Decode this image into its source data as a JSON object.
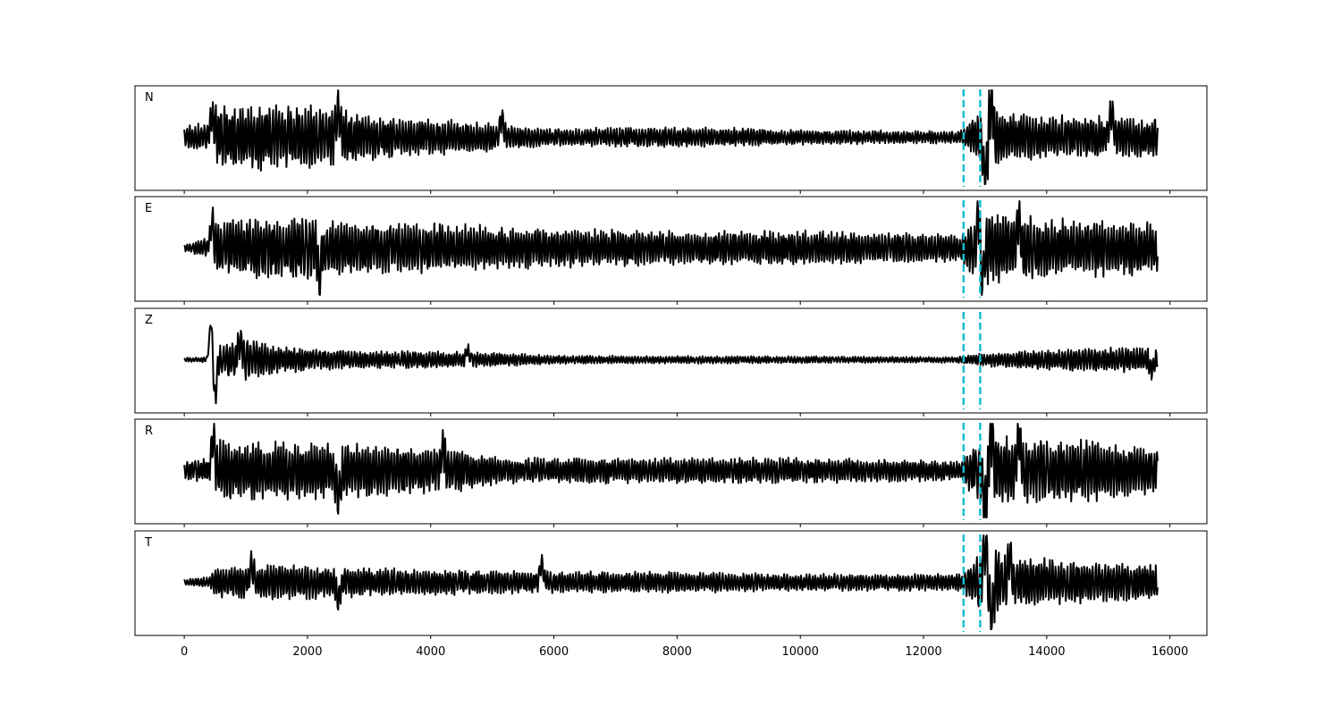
{
  "chart_data": {
    "type": "line",
    "title": "",
    "xlabel": "",
    "ylabel": "",
    "xlim": [
      -800,
      16600
    ],
    "x_ticks": [
      0,
      2000,
      4000,
      6000,
      8000,
      10000,
      12000,
      14000,
      16000
    ],
    "x_tick_labels": [
      "0",
      "2000",
      "4000",
      "6000",
      "8000",
      "10000",
      "12000",
      "14000",
      "16000"
    ],
    "trace_x_range": [
      0,
      15800
    ],
    "y_axis_visible": false,
    "grid": false,
    "colors": {
      "trace": "#000000",
      "pick": "#17becf"
    },
    "pick_markers": [
      12650,
      12920
    ],
    "panels": [
      {
        "label": "N",
        "envelope": [
          [
            0,
            0.25
          ],
          [
            400,
            0.35
          ],
          [
            500,
            0.7
          ],
          [
            1500,
            0.8
          ],
          [
            2500,
            0.65
          ],
          [
            3500,
            0.45
          ],
          [
            5000,
            0.35
          ],
          [
            6000,
            0.2
          ],
          [
            8000,
            0.25
          ],
          [
            10000,
            0.18
          ],
          [
            12000,
            0.15
          ],
          [
            12600,
            0.15
          ],
          [
            12900,
            0.6
          ],
          [
            13050,
            1.0
          ],
          [
            13300,
            0.55
          ],
          [
            14500,
            0.5
          ],
          [
            15800,
            0.45
          ]
        ],
        "events": [
          [
            450,
            0.5
          ],
          [
            2500,
            0.6
          ],
          [
            5150,
            0.4
          ],
          [
            13000,
            -1.0
          ],
          [
            13100,
            0.9
          ],
          [
            15050,
            0.55
          ]
        ]
      },
      {
        "label": "E",
        "envelope": [
          [
            0,
            0.08
          ],
          [
            400,
            0.25
          ],
          [
            500,
            0.7
          ],
          [
            2000,
            0.7
          ],
          [
            3000,
            0.6
          ],
          [
            4500,
            0.55
          ],
          [
            6000,
            0.45
          ],
          [
            8000,
            0.4
          ],
          [
            10000,
            0.4
          ],
          [
            12000,
            0.35
          ],
          [
            12600,
            0.3
          ],
          [
            12900,
            0.9
          ],
          [
            13200,
            0.8
          ],
          [
            14000,
            0.7
          ],
          [
            15800,
            0.6
          ]
        ],
        "events": [
          [
            450,
            0.5
          ],
          [
            2200,
            -0.6
          ],
          [
            12900,
            1.0
          ],
          [
            12950,
            -1.0
          ],
          [
            13550,
            0.7
          ]
        ]
      },
      {
        "label": "Z",
        "envelope": [
          [
            0,
            0.05
          ],
          [
            400,
            0.06
          ],
          [
            500,
            0.35
          ],
          [
            1000,
            0.5
          ],
          [
            1500,
            0.3
          ],
          [
            3000,
            0.2
          ],
          [
            4500,
            0.2
          ],
          [
            6000,
            0.1
          ],
          [
            10000,
            0.08
          ],
          [
            12500,
            0.07
          ],
          [
            13000,
            0.15
          ],
          [
            14000,
            0.25
          ],
          [
            15800,
            0.3
          ]
        ],
        "events": [
          [
            440,
            1.0
          ],
          [
            490,
            -1.0
          ],
          [
            900,
            0.45
          ],
          [
            4600,
            0.2
          ],
          [
            15700,
            -0.25
          ]
        ]
      },
      {
        "label": "R",
        "envelope": [
          [
            0,
            0.2
          ],
          [
            400,
            0.3
          ],
          [
            500,
            0.7
          ],
          [
            2500,
            0.65
          ],
          [
            4500,
            0.5
          ],
          [
            5200,
            0.3
          ],
          [
            8000,
            0.3
          ],
          [
            10000,
            0.3
          ],
          [
            12000,
            0.25
          ],
          [
            12600,
            0.2
          ],
          [
            12700,
            0.45
          ],
          [
            13100,
            1.0
          ],
          [
            13500,
            0.75
          ],
          [
            15000,
            0.7
          ],
          [
            15800,
            0.5
          ]
        ],
        "events": [
          [
            470,
            0.7
          ],
          [
            2500,
            -0.6
          ],
          [
            4200,
            0.55
          ],
          [
            13000,
            -0.8
          ],
          [
            13100,
            1.0
          ],
          [
            13550,
            0.7
          ]
        ]
      },
      {
        "label": "T",
        "envelope": [
          [
            0,
            0.08
          ],
          [
            400,
            0.12
          ],
          [
            500,
            0.35
          ],
          [
            1500,
            0.45
          ],
          [
            2500,
            0.35
          ],
          [
            4000,
            0.3
          ],
          [
            5800,
            0.25
          ],
          [
            8000,
            0.25
          ],
          [
            10000,
            0.2
          ],
          [
            12000,
            0.2
          ],
          [
            12600,
            0.2
          ],
          [
            12800,
            0.45
          ],
          [
            13050,
            1.0
          ],
          [
            13400,
            0.6
          ],
          [
            15800,
            0.4
          ]
        ],
        "events": [
          [
            1100,
            0.4
          ],
          [
            2500,
            -0.4
          ],
          [
            5800,
            0.4
          ],
          [
            13000,
            1.0
          ],
          [
            13100,
            -1.0
          ],
          [
            13400,
            0.6
          ]
        ]
      }
    ]
  }
}
